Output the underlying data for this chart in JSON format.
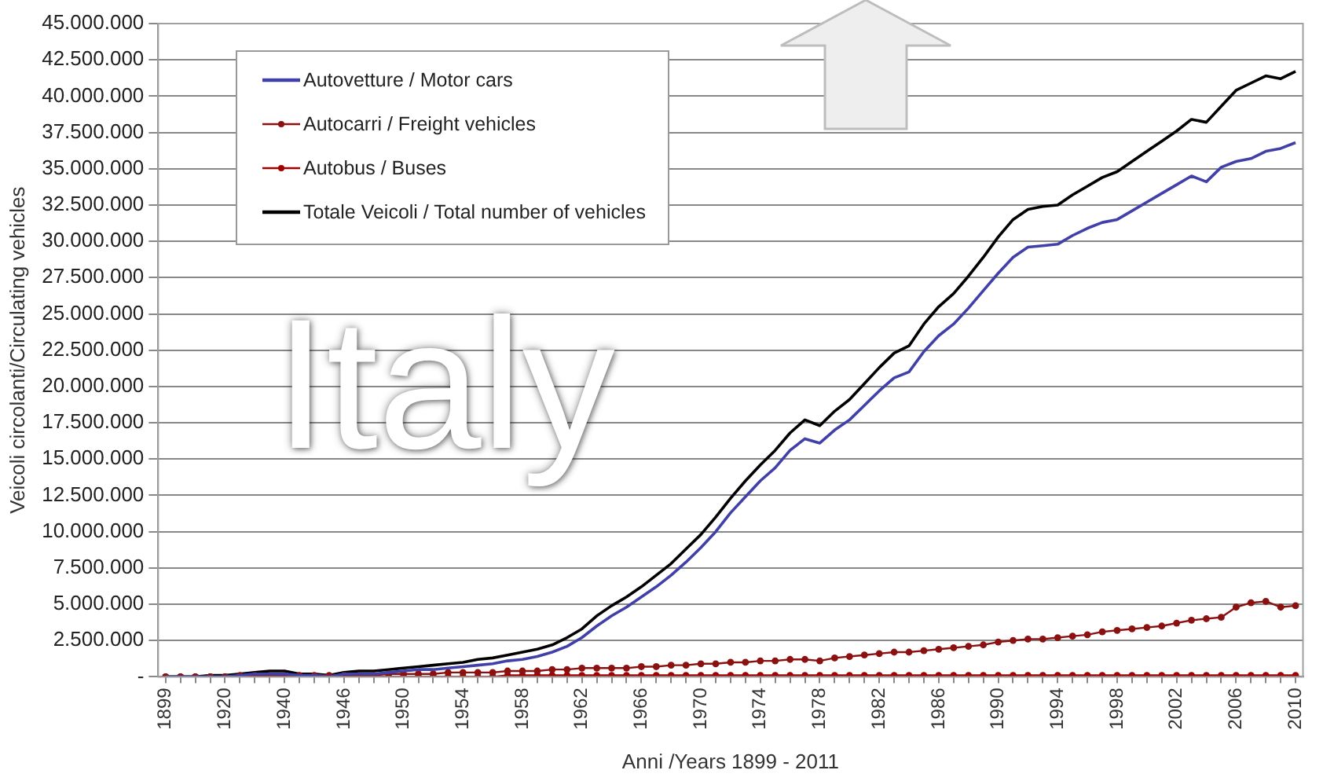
{
  "chart_data": {
    "type": "line",
    "xlabel": "Anni /Years 1899 - 2011",
    "ylabel": "Veicoli circolanti/Circulating vehicles",
    "annotations": [
      "Italy"
    ],
    "categories": [
      "1899",
      null,
      null,
      null,
      "1920",
      null,
      null,
      null,
      "1940",
      null,
      null,
      null,
      "1946",
      null,
      null,
      null,
      "1950",
      null,
      null,
      null,
      "1954",
      null,
      null,
      null,
      "1958",
      null,
      null,
      null,
      "1962",
      null,
      null,
      null,
      "1966",
      null,
      null,
      null,
      "1970",
      null,
      null,
      null,
      "1974",
      null,
      null,
      null,
      "1978",
      null,
      null,
      null,
      "1982",
      null,
      null,
      null,
      "1986",
      null,
      null,
      null,
      "1990",
      null,
      null,
      null,
      "1994",
      null,
      null,
      null,
      "1998",
      null,
      null,
      null,
      "2002",
      null,
      null,
      null,
      "2006",
      null,
      null,
      null,
      "2010"
    ],
    "series": [
      {
        "name": "Autovetture / Motor cars",
        "color": "#4040a8",
        "marker": "none",
        "values": [
          0,
          0,
          0,
          0,
          0,
          100000,
          200000,
          200000,
          200000,
          100000,
          100000,
          0,
          200000,
          200000,
          200000,
          300000,
          400000,
          500000,
          500000,
          600000,
          700000,
          800000,
          900000,
          1100000,
          1200000,
          1400000,
          1700000,
          2100000,
          2700000,
          3500000,
          4200000,
          4800000,
          5500000,
          6200000,
          7000000,
          7900000,
          8900000,
          10000000,
          11300000,
          12400000,
          13500000,
          14400000,
          15600000,
          16400000,
          16100000,
          17000000,
          17700000,
          18700000,
          19700000,
          20600000,
          21000000,
          22400000,
          23500000,
          24300000,
          25400000,
          26600000,
          27800000,
          28900000,
          29600000,
          29700000,
          29800000,
          30400000,
          30900000,
          31300000,
          31500000,
          32100000,
          32700000,
          33300000,
          33900000,
          34500000,
          34100000,
          35100000,
          35500000,
          35700000,
          36200000,
          36400000,
          36800000
        ]
      },
      {
        "name": "Autocarri / Freight vehicles",
        "color": "#8b1010",
        "marker": "circle",
        "values": [
          0,
          0,
          0,
          0,
          0,
          100000,
          100000,
          100000,
          100000,
          100000,
          100000,
          100000,
          100000,
          100000,
          100000,
          200000,
          200000,
          200000,
          200000,
          300000,
          300000,
          300000,
          300000,
          400000,
          400000,
          400000,
          500000,
          500000,
          600000,
          600000,
          600000,
          600000,
          700000,
          700000,
          800000,
          800000,
          900000,
          900000,
          1000000,
          1000000,
          1100000,
          1100000,
          1200000,
          1200000,
          1100000,
          1300000,
          1400000,
          1500000,
          1600000,
          1700000,
          1700000,
          1800000,
          1900000,
          2000000,
          2100000,
          2200000,
          2400000,
          2500000,
          2600000,
          2600000,
          2700000,
          2800000,
          2900000,
          3100000,
          3200000,
          3300000,
          3400000,
          3500000,
          3700000,
          3900000,
          4000000,
          4100000,
          4800000,
          5100000,
          5200000,
          4800000,
          4900000
        ]
      },
      {
        "name": "Autobus / Buses",
        "color": "#a00000",
        "marker": "circle",
        "values": [
          0,
          0,
          0,
          0,
          0,
          0,
          0,
          0,
          0,
          0,
          0,
          0,
          0,
          0,
          0,
          0,
          0,
          0,
          0,
          0,
          0,
          0,
          0,
          100000,
          100000,
          100000,
          100000,
          100000,
          100000,
          100000,
          100000,
          100000,
          100000,
          100000,
          100000,
          100000,
          100000,
          100000,
          100000,
          100000,
          100000,
          100000,
          100000,
          100000,
          100000,
          100000,
          100000,
          100000,
          100000,
          100000,
          100000,
          100000,
          100000,
          100000,
          100000,
          100000,
          100000,
          100000,
          100000,
          100000,
          100000,
          100000,
          100000,
          100000,
          100000,
          100000,
          100000,
          100000,
          100000,
          100000,
          100000,
          100000,
          100000,
          100000,
          100000,
          100000,
          100000
        ]
      },
      {
        "name": "Totale Veicoli / Total number of vehicles",
        "color": "#000000",
        "marker": "none",
        "values": [
          0,
          0,
          0,
          100000,
          100000,
          200000,
          300000,
          400000,
          400000,
          200000,
          200000,
          100000,
          300000,
          400000,
          400000,
          500000,
          600000,
          700000,
          800000,
          900000,
          1000000,
          1200000,
          1300000,
          1500000,
          1700000,
          1900000,
          2200000,
          2700000,
          3300000,
          4200000,
          4900000,
          5500000,
          6200000,
          7000000,
          7800000,
          8800000,
          9800000,
          11000000,
          12300000,
          13500000,
          14600000,
          15600000,
          16800000,
          17700000,
          17300000,
          18300000,
          19100000,
          20200000,
          21300000,
          22300000,
          22800000,
          24300000,
          25500000,
          26400000,
          27600000,
          28900000,
          30300000,
          31500000,
          32200000,
          32400000,
          32500000,
          33200000,
          33800000,
          34400000,
          34800000,
          35500000,
          36200000,
          36900000,
          37600000,
          38400000,
          38200000,
          39300000,
          40400000,
          40900000,
          41400000,
          41200000,
          41700000
        ]
      }
    ],
    "ylim": [
      0,
      45000000
    ],
    "yticks": [
      {
        "value": 0,
        "label": "-"
      },
      {
        "value": 2500000,
        "label": "2.500.000"
      },
      {
        "value": 5000000,
        "label": "5.000.000"
      },
      {
        "value": 7500000,
        "label": "7.500.000"
      },
      {
        "value": 10000000,
        "label": "10.000.000"
      },
      {
        "value": 12500000,
        "label": "12.500.000"
      },
      {
        "value": 15000000,
        "label": "15.000.000"
      },
      {
        "value": 17500000,
        "label": "17.500.000"
      },
      {
        "value": 20000000,
        "label": "20.000.000"
      },
      {
        "value": 22500000,
        "label": "22.500.000"
      },
      {
        "value": 25000000,
        "label": "25.000.000"
      },
      {
        "value": 27500000,
        "label": "27.500.000"
      },
      {
        "value": 30000000,
        "label": "30.000.000"
      },
      {
        "value": 32500000,
        "label": "32.500.000"
      },
      {
        "value": 35000000,
        "label": "35.000.000"
      },
      {
        "value": 37500000,
        "label": "37.500.000"
      },
      {
        "value": 40000000,
        "label": "40.000.000"
      },
      {
        "value": 42500000,
        "label": "42.500.000"
      },
      {
        "value": 45000000,
        "label": "45.000.000"
      }
    ],
    "grid": "y",
    "legend": "top left",
    "line_style": "solid"
  }
}
